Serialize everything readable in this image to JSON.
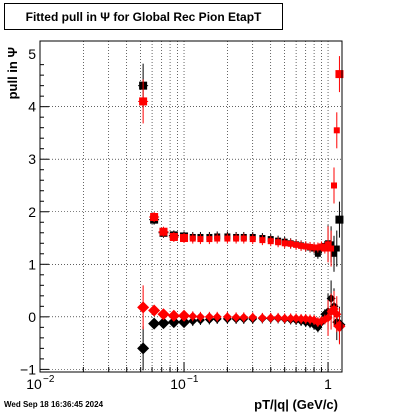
{
  "chart_data": {
    "type": "scatter",
    "title": "Fitted pull in  Ψ  for Global Rec Pion EtapT",
    "xlabel": "pT/|q| (GeV/c)",
    "ylabel": "pull in  Ψ",
    "x_scale": "log",
    "xlim": [
      0.01,
      1.25
    ],
    "ylim": [
      -1.05,
      5.25
    ],
    "x_ticks": [
      {
        "value": 0.01,
        "base": "10",
        "exp": "−2"
      },
      {
        "value": 0.1,
        "base": "10",
        "exp": "−1"
      },
      {
        "value": 1,
        "label": "1"
      }
    ],
    "y_ticks": [
      -1,
      0,
      1,
      2,
      3,
      4,
      5
    ],
    "grid": true,
    "legend": "none",
    "series": [
      {
        "color": "#000000",
        "marker": "square",
        "x": [
          0.052,
          0.062,
          0.072,
          0.085,
          0.1,
          0.115,
          0.13,
          0.15,
          0.17,
          0.2,
          0.23,
          0.26,
          0.3,
          0.35,
          0.4,
          0.45,
          0.5,
          0.55,
          0.6,
          0.65,
          0.7,
          0.75,
          0.8,
          0.85,
          0.9,
          0.95,
          1.0,
          1.05,
          1.1,
          1.15,
          1.2
        ],
        "y": [
          4.4,
          1.85,
          1.6,
          1.55,
          1.53,
          1.52,
          1.52,
          1.52,
          1.53,
          1.53,
          1.52,
          1.52,
          1.52,
          1.5,
          1.48,
          1.45,
          1.43,
          1.4,
          1.38,
          1.36,
          1.34,
          1.32,
          1.3,
          1.2,
          1.3,
          1.35,
          1.4,
          1.38,
          1.2,
          1.3,
          1.85
        ]
      },
      {
        "color": "#ff0000",
        "marker": "square",
        "x": [
          0.052,
          0.062,
          0.072,
          0.085,
          0.1,
          0.115,
          0.13,
          0.15,
          0.17,
          0.2,
          0.23,
          0.26,
          0.3,
          0.35,
          0.4,
          0.45,
          0.5,
          0.55,
          0.6,
          0.65,
          0.7,
          0.75,
          0.8,
          0.85,
          0.9,
          0.95,
          1.0,
          1.05,
          1.1,
          1.15,
          1.2
        ],
        "y": [
          4.1,
          1.9,
          1.62,
          1.52,
          1.5,
          1.49,
          1.48,
          1.48,
          1.49,
          1.49,
          1.49,
          1.49,
          1.48,
          1.46,
          1.44,
          1.42,
          1.4,
          1.39,
          1.37,
          1.35,
          1.34,
          1.33,
          1.32,
          1.32,
          1.34,
          1.3,
          1.38,
          1.3,
          2.5,
          3.55,
          4.62
        ]
      },
      {
        "color": "#000000",
        "marker": "diamond",
        "x": [
          0.052,
          0.062,
          0.072,
          0.085,
          0.1,
          0.115,
          0.13,
          0.15,
          0.17,
          0.2,
          0.23,
          0.26,
          0.3,
          0.35,
          0.4,
          0.45,
          0.5,
          0.55,
          0.6,
          0.65,
          0.7,
          0.75,
          0.8,
          0.85,
          0.9,
          0.95,
          1.0,
          1.05,
          1.1,
          1.15,
          1.2
        ],
        "y": [
          -0.6,
          -0.13,
          -0.12,
          -0.1,
          -0.1,
          -0.08,
          -0.06,
          -0.05,
          -0.04,
          -0.04,
          -0.04,
          -0.04,
          -0.04,
          -0.03,
          -0.03,
          -0.03,
          -0.04,
          -0.05,
          -0.06,
          -0.08,
          -0.1,
          -0.12,
          -0.15,
          -0.2,
          -0.1,
          0.05,
          0.1,
          0.35,
          0.2,
          -0.1,
          -0.15
        ]
      },
      {
        "color": "#ff0000",
        "marker": "diamond",
        "x": [
          0.052,
          0.062,
          0.072,
          0.085,
          0.1,
          0.115,
          0.13,
          0.15,
          0.17,
          0.2,
          0.23,
          0.26,
          0.3,
          0.35,
          0.4,
          0.45,
          0.5,
          0.55,
          0.6,
          0.65,
          0.7,
          0.75,
          0.8,
          0.85,
          0.9,
          0.95,
          1.0,
          1.05,
          1.1,
          1.15,
          1.2
        ],
        "y": [
          0.18,
          0.12,
          0.05,
          0.02,
          0.02,
          0.01,
          0.0,
          0.0,
          0.0,
          0.0,
          -0.01,
          -0.01,
          -0.01,
          -0.02,
          -0.02,
          -0.02,
          -0.03,
          -0.03,
          -0.03,
          -0.04,
          -0.04,
          -0.05,
          -0.06,
          -0.1,
          -0.08,
          -0.05,
          -0.02,
          0.1,
          0.15,
          0.05,
          -0.18
        ]
      }
    ]
  },
  "timestamp": "Wed Sep 18 16:36:45 2024"
}
